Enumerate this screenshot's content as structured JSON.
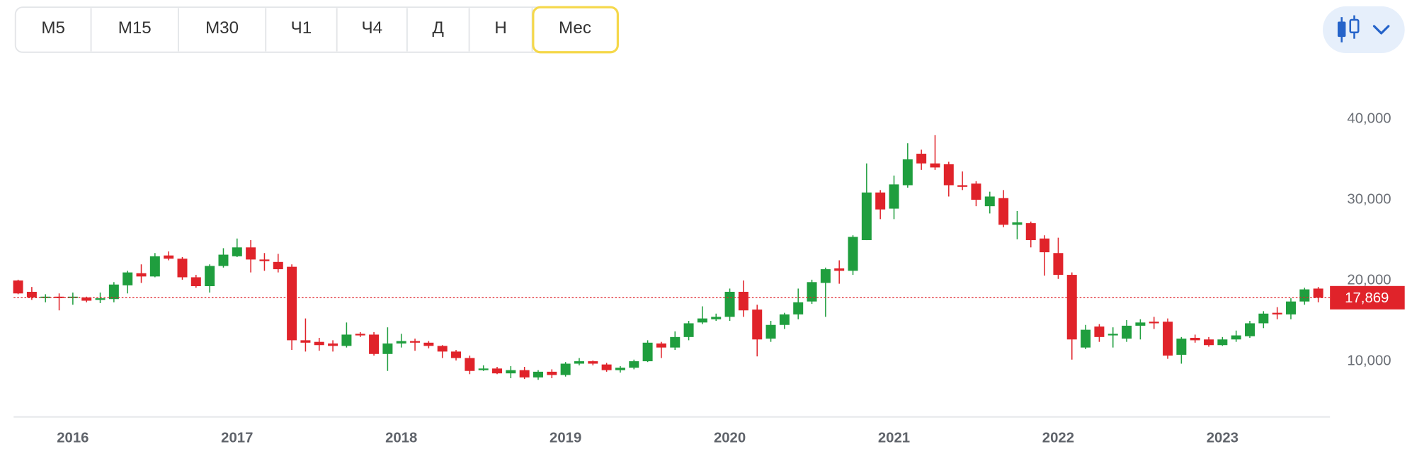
{
  "toolbar": {
    "timeframes": [
      "М5",
      "М15",
      "М30",
      "Ч1",
      "Ч4",
      "Д",
      "Н",
      "Мес"
    ],
    "selected": 7
  },
  "chart_data": {
    "type": "candlestick",
    "x": [
      null,
      null,
      null,
      null,
      "2016",
      null,
      null,
      null,
      null,
      null,
      null,
      null,
      null,
      null,
      null,
      null,
      "2017",
      null,
      null,
      null,
      null,
      null,
      null,
      null,
      null,
      null,
      null,
      null,
      "2018",
      null,
      null,
      null,
      null,
      null,
      null,
      null,
      null,
      null,
      null,
      null,
      "2019",
      null,
      null,
      null,
      null,
      null,
      null,
      null,
      null,
      null,
      null,
      null,
      "2020",
      null,
      null,
      null,
      null,
      null,
      null,
      null,
      null,
      null,
      null,
      null,
      "2021",
      null,
      null,
      null,
      null,
      null,
      null,
      null,
      null,
      null,
      null,
      null,
      "2022",
      null,
      null,
      null,
      null,
      null,
      null,
      null,
      null,
      null,
      null,
      null,
      "2023",
      null,
      null,
      null,
      null,
      null,
      null,
      null
    ],
    "open": [
      20000,
      18600,
      17900,
      18000,
      17900,
      17900,
      17600,
      17700,
      19400,
      20900,
      20500,
      23100,
      22700,
      20400,
      19300,
      21800,
      23000,
      24100,
      22600,
      22300,
      21700,
      12600,
      12400,
      12200,
      11900,
      13400,
      13300,
      10900,
      12200,
      12500,
      12300,
      11900,
      11200,
      10400,
      8900,
      9100,
      8500,
      8900,
      8000,
      8700,
      8300,
      9700,
      10000,
      9600,
      8900,
      9200,
      10000,
      12200,
      11700,
      13000,
      14800,
      15200,
      15500,
      18600,
      16400,
      12800,
      14500,
      15800,
      17400,
      19700,
      21500,
      21200,
      25000,
      30900,
      28900,
      31800,
      35700,
      34500,
      34400,
      31800,
      32000,
      29200,
      30200,
      26900,
      27100,
      25200,
      23400,
      20700,
      11700,
      14300,
      13200,
      12800,
      14400,
      14900,
      14900,
      10800,
      12900,
      12700,
      12000,
      12700,
      13100,
      14700,
      16000,
      15800,
      17400,
      19000
    ],
    "high": [
      20100,
      19200,
      18300,
      18400,
      18500,
      18000,
      18500,
      19800,
      21200,
      22000,
      23400,
      23600,
      22900,
      20700,
      22000,
      24000,
      25200,
      25000,
      23400,
      23300,
      22000,
      15300,
      12900,
      12600,
      14800,
      13600,
      13600,
      14200,
      13400,
      12800,
      12500,
      12000,
      11400,
      10700,
      9500,
      9300,
      9400,
      9300,
      8900,
      9000,
      9900,
      10400,
      10100,
      9800,
      9400,
      10200,
      12600,
      12400,
      13700,
      15000,
      16800,
      15900,
      19000,
      20000,
      17000,
      15000,
      16000,
      19000,
      20100,
      21600,
      22500,
      25600,
      34500,
      31200,
      33000,
      37000,
      36200,
      38000,
      34700,
      33500,
      32300,
      31000,
      31200,
      28600,
      27300,
      25600,
      25300,
      21000,
      14500,
      14600,
      14200,
      15100,
      15200,
      15500,
      15300,
      13000,
      13300,
      13000,
      13000,
      13800,
      15000,
      16200,
      16700,
      17800,
      19100,
      19200
    ],
    "low": [
      18300,
      17600,
      17300,
      16300,
      17000,
      17300,
      17200,
      17300,
      18400,
      19700,
      20400,
      22500,
      20100,
      19100,
      18500,
      21600,
      22900,
      21000,
      21200,
      21000,
      11400,
      11200,
      11300,
      11200,
      11700,
      13000,
      10700,
      8800,
      11700,
      11300,
      11600,
      10400,
      10100,
      8400,
      8800,
      8400,
      7900,
      7800,
      7700,
      7900,
      8100,
      9500,
      9500,
      8700,
      8600,
      9000,
      9900,
      10400,
      11400,
      12600,
      14600,
      15000,
      15000,
      15500,
      10600,
      12400,
      14000,
      15200,
      17100,
      15500,
      19600,
      20700,
      25000,
      27600,
      27600,
      31500,
      33700,
      33700,
      30400,
      31200,
      29200,
      28300,
      26600,
      25100,
      24100,
      20600,
      20200,
      10200,
      11500,
      12400,
      11700,
      12400,
      12700,
      14000,
      10300,
      9700,
      12300,
      11800,
      11900,
      12400,
      12900,
      14100,
      15200,
      15200,
      17000,
      17300
    ],
    "close": [
      18400,
      17900,
      18000,
      17900,
      18000,
      17500,
      17800,
      19500,
      21000,
      20500,
      23000,
      22700,
      20400,
      19300,
      21800,
      23200,
      24100,
      22600,
      22400,
      21400,
      12600,
      12300,
      12000,
      11900,
      13300,
      13200,
      10900,
      12200,
      12500,
      12300,
      11900,
      11200,
      10400,
      8800,
      9100,
      8500,
      8900,
      8000,
      8700,
      8300,
      9700,
      10000,
      9700,
      8900,
      9200,
      10000,
      12300,
      11700,
      13000,
      14700,
      15300,
      15500,
      18600,
      16300,
      12700,
      14500,
      15800,
      17300,
      19800,
      21400,
      21200,
      25400,
      30900,
      28800,
      31900,
      35000,
      34500,
      34000,
      31800,
      31600,
      30000,
      30400,
      26900,
      27200,
      25000,
      23500,
      20700,
      12700,
      13900,
      13000,
      13400,
      14400,
      14800,
      14700,
      10700,
      12800,
      12600,
      12000,
      12700,
      13200,
      14700,
      15900,
      15800,
      17400,
      18900,
      17869
    ],
    "up_color": "#1f9e3e",
    "down_color": "#e0232a",
    "ylim": [
      3100,
      44700
    ],
    "yticks": [
      {
        "value": 10000,
        "label": "10,000"
      },
      {
        "value": 20000,
        "label": "20,000"
      },
      {
        "value": 30000,
        "label": "30,000"
      },
      {
        "value": 40000,
        "label": "40,000"
      }
    ],
    "last_price": {
      "value": 17869,
      "label": "17,869"
    }
  }
}
